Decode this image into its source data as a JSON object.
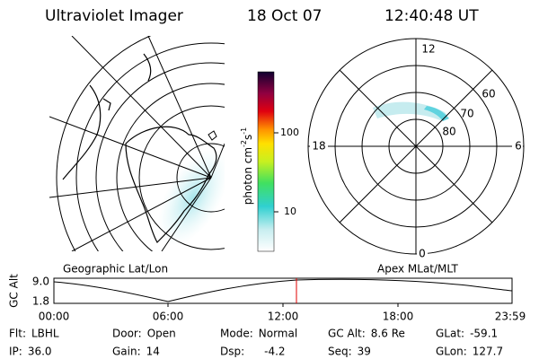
{
  "header": {
    "title": "Ultraviolet Imager",
    "date": "18 Oct 07",
    "time": "12:40:48 UT"
  },
  "colorbar": {
    "label_unit": "photon cm",
    "exp1": "-2",
    "label_unit2": "s",
    "exp2": "-1",
    "ticks": [
      "100",
      "10"
    ]
  },
  "left_panel": {
    "label": "Geographic Lat/Lon"
  },
  "right_panel": {
    "label": "Apex MLat/MLT",
    "mlt_labels": [
      "12",
      "18",
      "6",
      "0"
    ],
    "lat_labels": [
      "60",
      "70",
      "80"
    ]
  },
  "altitude_plot": {
    "y_label": "GC Alt",
    "y_ticks": [
      "9.0",
      "1.8"
    ],
    "x_ticks": [
      "00:00",
      "06:00",
      "12:00",
      "18:00",
      "23:59"
    ]
  },
  "info": [
    [
      "Flt:",
      "LBHL"
    ],
    [
      "Door:",
      "Open"
    ],
    [
      "Mode:",
      "Normal"
    ],
    [
      "GC Alt:",
      "8.6 Re"
    ],
    [
      "GLat:",
      "-59.1"
    ],
    [
      "IP:",
      "36.0"
    ],
    [
      "Gain:",
      "14"
    ],
    [
      "Dsp:",
      "-4.2"
    ],
    [
      "Seq:",
      "39"
    ],
    [
      "GLon:",
      "127.7"
    ]
  ]
}
